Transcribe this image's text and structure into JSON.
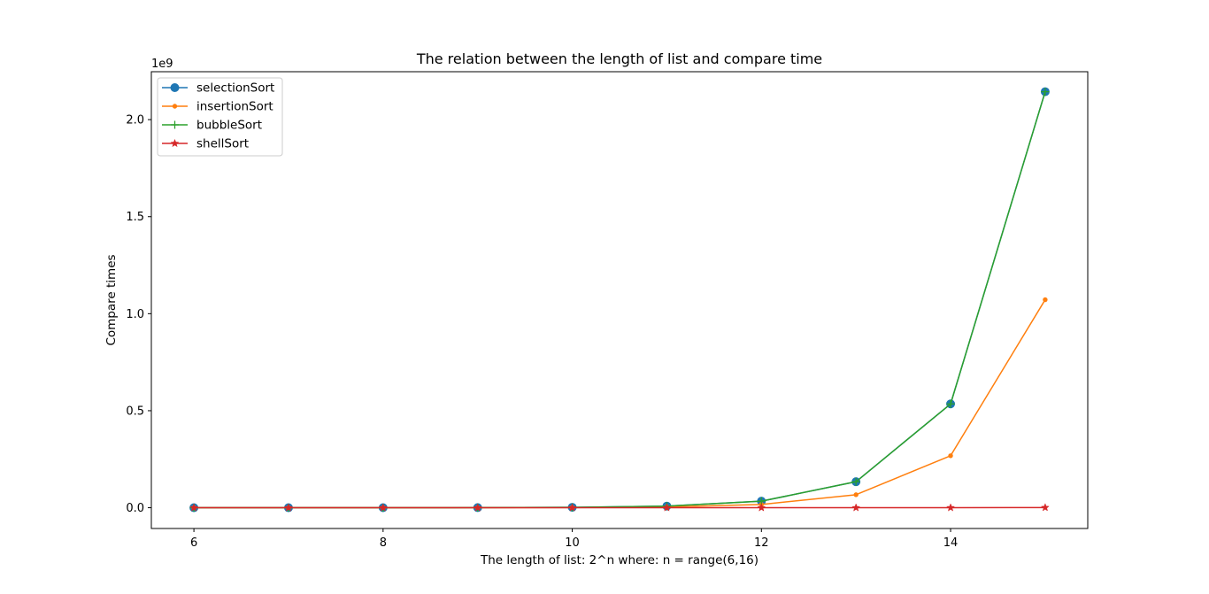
{
  "chart_data": {
    "type": "line",
    "title": "The relation between the length of list and compare time",
    "xlabel": "The length of list: 2^n where: n = range(6,16)",
    "ylabel": "Compare times",
    "y_scale_label": "1e9",
    "x": [
      6,
      7,
      8,
      9,
      10,
      11,
      12,
      13,
      14,
      15
    ],
    "xlim": [
      5.55,
      15.45
    ],
    "ylim": [
      -0.107,
      2.247
    ],
    "x_ticks": [
      6,
      8,
      10,
      12,
      14
    ],
    "x_tick_labels": [
      "6",
      "8",
      "10",
      "12",
      "14"
    ],
    "y_ticks": [
      0.0,
      0.5,
      1.0,
      1.5,
      2.0
    ],
    "y_tick_labels": [
      "0.0",
      "0.5",
      "1.0",
      "1.5",
      "2.0"
    ],
    "grid": false,
    "legend_position": "upper-left",
    "series": [
      {
        "name": "selectionSort",
        "color": "#1f77b4",
        "marker": "circle",
        "values": [
          2.1e-06,
          1.36e-05,
          8.47e-05,
          0.00051,
          0.00206,
          0.00838,
          0.0337,
          0.134,
          0.535,
          2.144
        ]
      },
      {
        "name": "insertionSort",
        "color": "#ff7f0e",
        "marker": "point",
        "values": [
          1.1e-06,
          6.8e-06,
          4.2e-05,
          0.00026,
          0.00105,
          0.0042,
          0.0168,
          0.067,
          0.268,
          1.072
        ]
      },
      {
        "name": "bubbleSort",
        "color": "#2ca02c",
        "marker": "plus",
        "values": [
          2.1e-06,
          1.36e-05,
          8.47e-05,
          0.00051,
          0.00206,
          0.00838,
          0.0337,
          0.134,
          0.535,
          2.144
        ]
      },
      {
        "name": "shellSort",
        "color": "#d62728",
        "marker": "star",
        "values": [
          1e-07,
          2e-07,
          5e-07,
          1.2e-06,
          3e-06,
          7e-06,
          2e-05,
          6e-05,
          0.0002,
          0.0009
        ]
      }
    ]
  }
}
